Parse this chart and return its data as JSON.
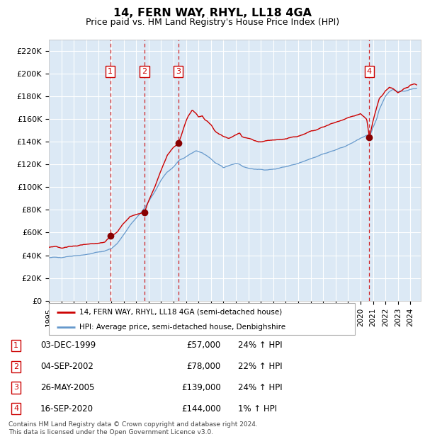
{
  "title": "14, FERN WAY, RHYL, LL18 4GA",
  "subtitle": "Price paid vs. HM Land Registry's House Price Index (HPI)",
  "xlim_start": 1995.0,
  "xlim_end": 2024.83,
  "ylim": [
    0,
    230000
  ],
  "yticks": [
    0,
    20000,
    40000,
    60000,
    80000,
    100000,
    120000,
    140000,
    160000,
    180000,
    200000,
    220000
  ],
  "ytick_labels": [
    "£0",
    "£20K",
    "£40K",
    "£60K",
    "£80K",
    "£100K",
    "£120K",
    "£140K",
    "£160K",
    "£180K",
    "£200K",
    "£220K"
  ],
  "chart_bg_color": "#dce9f5",
  "grid_color": "#ffffff",
  "red_line_color": "#cc0000",
  "blue_line_color": "#6699cc",
  "marker_color": "#880000",
  "dashed_line_color": "#cc0000",
  "transactions": [
    {
      "label": "1",
      "year": 1999.92,
      "price": 57000,
      "date": "03-DEC-1999",
      "pct": "24%",
      "dir": "↑"
    },
    {
      "label": "2",
      "year": 2002.67,
      "price": 78000,
      "date": "04-SEP-2002",
      "pct": "22%",
      "dir": "↑"
    },
    {
      "label": "3",
      "year": 2005.39,
      "price": 139000,
      "date": "26-MAY-2005",
      "pct": "24%",
      "dir": "↑"
    },
    {
      "label": "4",
      "year": 2020.71,
      "price": 144000,
      "date": "16-SEP-2020",
      "pct": "1%",
      "dir": "↑"
    }
  ],
  "legend_line1": "14, FERN WAY, RHYL, LL18 4GA (semi-detached house)",
  "legend_line2": "HPI: Average price, semi-detached house, Denbighshire",
  "footer1": "Contains HM Land Registry data © Crown copyright and database right 2024.",
  "footer2": "This data is licensed under the Open Government Licence v3.0."
}
